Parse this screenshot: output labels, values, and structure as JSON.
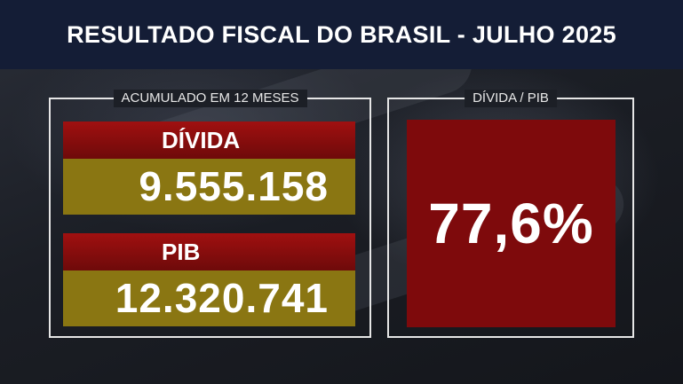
{
  "header": {
    "title": "RESULTADO FISCAL DO BRASIL - JULHO 2025"
  },
  "left_panel": {
    "label": "ACUMULADO EM 12 MESES",
    "debt": {
      "label": "DÍVIDA",
      "value": "9.555.158"
    },
    "gdp": {
      "label": "PIB",
      "value": "12.320.741"
    }
  },
  "right_panel": {
    "label": "DÍVIDA / PIB",
    "ratio": "77,6%"
  },
  "colors": {
    "header_bg": "#141d36",
    "label_bar": "#a01010",
    "value_bar": "#8a7612",
    "ratio_box": "#7e0a0c"
  }
}
